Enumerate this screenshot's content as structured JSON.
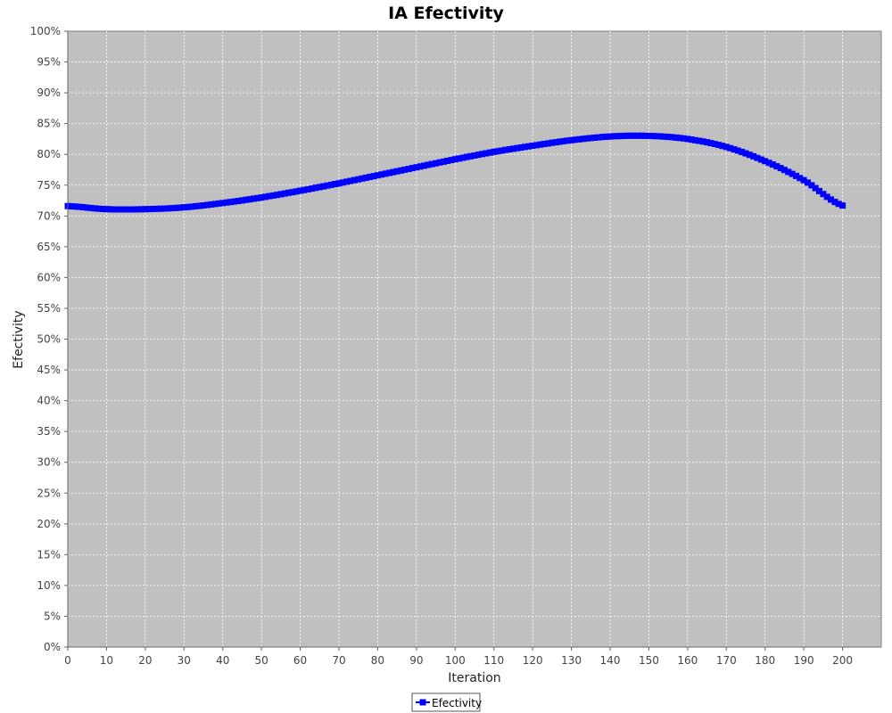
{
  "chart_data": {
    "type": "line",
    "title": "IA Efectivity",
    "xlabel": "Iteration",
    "ylabel": "Efectivity",
    "xlim": [
      0,
      210
    ],
    "ylim": [
      0,
      100
    ],
    "x_ticks": [
      0,
      10,
      20,
      30,
      40,
      50,
      60,
      70,
      80,
      90,
      100,
      110,
      120,
      130,
      140,
      150,
      160,
      170,
      180,
      190,
      200
    ],
    "y_ticks": [
      0,
      5,
      10,
      15,
      20,
      25,
      30,
      35,
      40,
      45,
      50,
      55,
      60,
      65,
      70,
      75,
      80,
      85,
      90,
      95,
      100
    ],
    "y_tick_suffix": "%",
    "grid": true,
    "legend_position": "bottom-center",
    "colors": {
      "plot_background": "#c0c0c0",
      "series": "#0000ff",
      "grid": "#ffffff"
    },
    "series": [
      {
        "name": "Efectivity",
        "marker": "square",
        "x": [
          0,
          10,
          20,
          30,
          40,
          50,
          60,
          70,
          80,
          90,
          100,
          110,
          120,
          130,
          140,
          150,
          160,
          170,
          180,
          190,
          200
        ],
        "values": [
          71.6,
          71.1,
          71.1,
          71.4,
          72.1,
          73.0,
          74.1,
          75.3,
          76.6,
          77.9,
          79.2,
          80.4,
          81.4,
          82.3,
          82.9,
          83.0,
          82.5,
          81.2,
          78.9,
          75.8,
          71.7
        ]
      }
    ]
  }
}
